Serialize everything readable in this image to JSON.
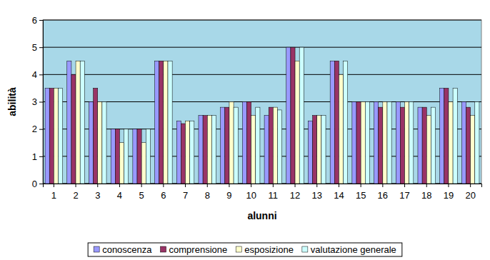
{
  "chart_data": {
    "type": "bar",
    "xlabel": "alunni",
    "ylabel": "abilità",
    "categories": [
      "1",
      "2",
      "3",
      "4",
      "5",
      "6",
      "7",
      "8",
      "9",
      "10",
      "11",
      "12",
      "13",
      "14",
      "15",
      "16",
      "17",
      "18",
      "19",
      "20"
    ],
    "series": [
      {
        "name": "conoscenza",
        "color": "#9999ff",
        "values": [
          3.5,
          4.5,
          3,
          2,
          2,
          4.5,
          2.3,
          2.5,
          2.8,
          3,
          2.5,
          5,
          2.3,
          4.5,
          3,
          3,
          3,
          2.8,
          3.5,
          3
        ]
      },
      {
        "name": "comprensione",
        "color": "#993366",
        "values": [
          3.5,
          4,
          3.5,
          2,
          2,
          4.5,
          2.2,
          2.5,
          2.8,
          3,
          2.8,
          5,
          2.5,
          4.5,
          3,
          2.8,
          2.8,
          2.8,
          3.5,
          2.8
        ]
      },
      {
        "name": "esposizione",
        "color": "#ffffcc",
        "values": [
          3.5,
          4.5,
          3,
          1.5,
          1.5,
          4.5,
          2.3,
          2.5,
          3,
          2.5,
          2.8,
          4.5,
          2.5,
          4,
          3,
          3,
          3,
          2.5,
          3,
          2.5
        ]
      },
      {
        "name": "valutazione generale",
        "color": "#ccffff",
        "values": [
          3.5,
          4.5,
          3,
          2,
          2,
          4.5,
          2.3,
          2.5,
          2.8,
          2.8,
          2.7,
          5,
          2.5,
          4.5,
          3,
          3,
          3,
          2.8,
          3.5,
          3
        ]
      }
    ],
    "ylim": [
      0,
      6
    ],
    "yticks": [
      0,
      1,
      2,
      3,
      4,
      5,
      6
    ],
    "grid": true,
    "legend": "bottom"
  }
}
